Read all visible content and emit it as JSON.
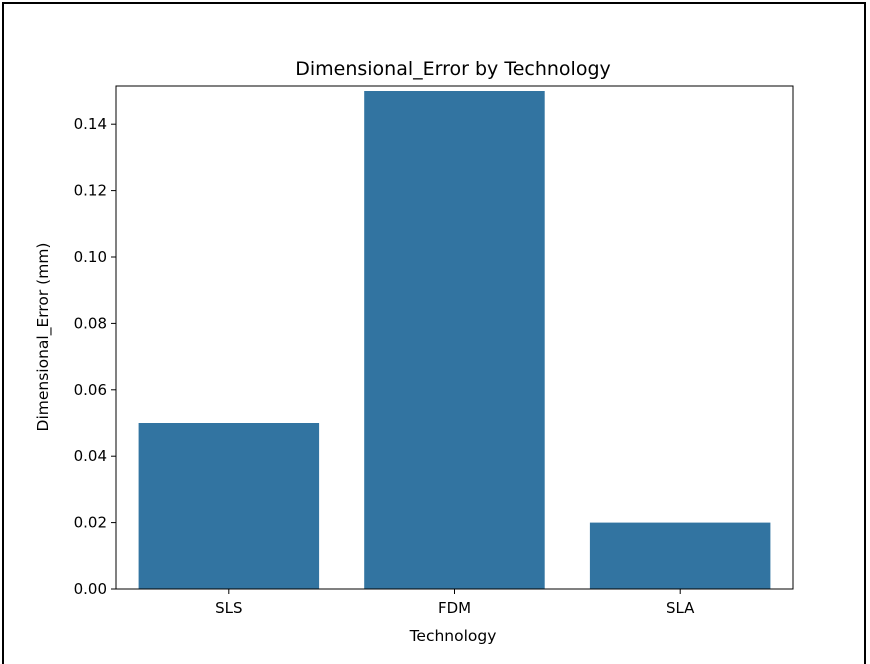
{
  "chart_data": {
    "type": "bar",
    "title": "Dimensional_Error by Technology",
    "xlabel": "Technology",
    "ylabel": "Dimensional_Error (mm)",
    "categories": [
      "SLS",
      "FDM",
      "SLA"
    ],
    "values": [
      0.05,
      0.15,
      0.02
    ],
    "ylim": [
      0,
      0.1515
    ],
    "yticks": [
      0.0,
      0.02,
      0.04,
      0.06,
      0.08,
      0.1,
      0.12,
      0.14
    ],
    "ytick_labels": [
      "0.00",
      "0.02",
      "0.04",
      "0.06",
      "0.08",
      "0.10",
      "0.12",
      "0.14"
    ],
    "bar_color": "#3274a1",
    "grid": false,
    "legend": "none"
  }
}
